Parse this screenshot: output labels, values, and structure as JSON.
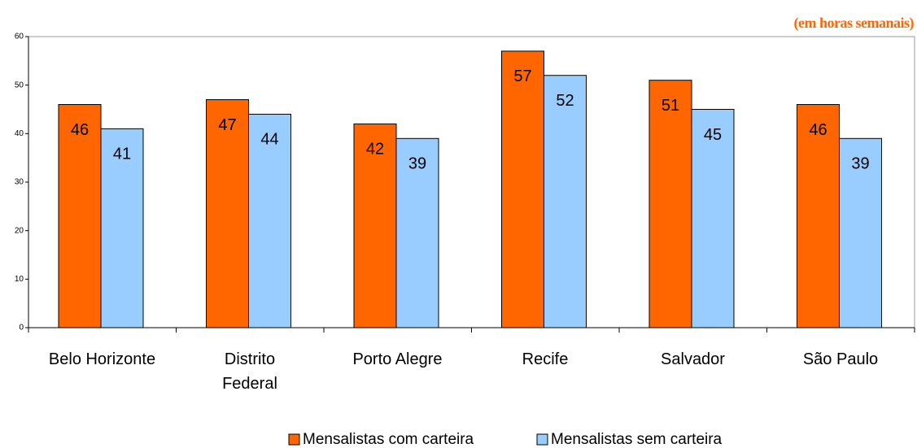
{
  "chart_data": {
    "type": "bar",
    "annotation": "(em horas semanais)",
    "categories": [
      "Belo Horizonte",
      "Distrito\nFederal",
      "Porto Alegre",
      "Recife",
      "Salvador",
      "São Paulo"
    ],
    "series": [
      {
        "name": "Mensalistas com carteira",
        "color": "#ff6600",
        "values": [
          46,
          47,
          42,
          57,
          51,
          46
        ]
      },
      {
        "name": "Mensalistas sem carteira",
        "color": "#99ccff",
        "values": [
          41,
          44,
          39,
          52,
          45,
          39
        ]
      }
    ],
    "ylim": [
      0,
      60
    ],
    "yticks": [
      0,
      10,
      20,
      30,
      40,
      50,
      60
    ],
    "legend": "bottom"
  }
}
